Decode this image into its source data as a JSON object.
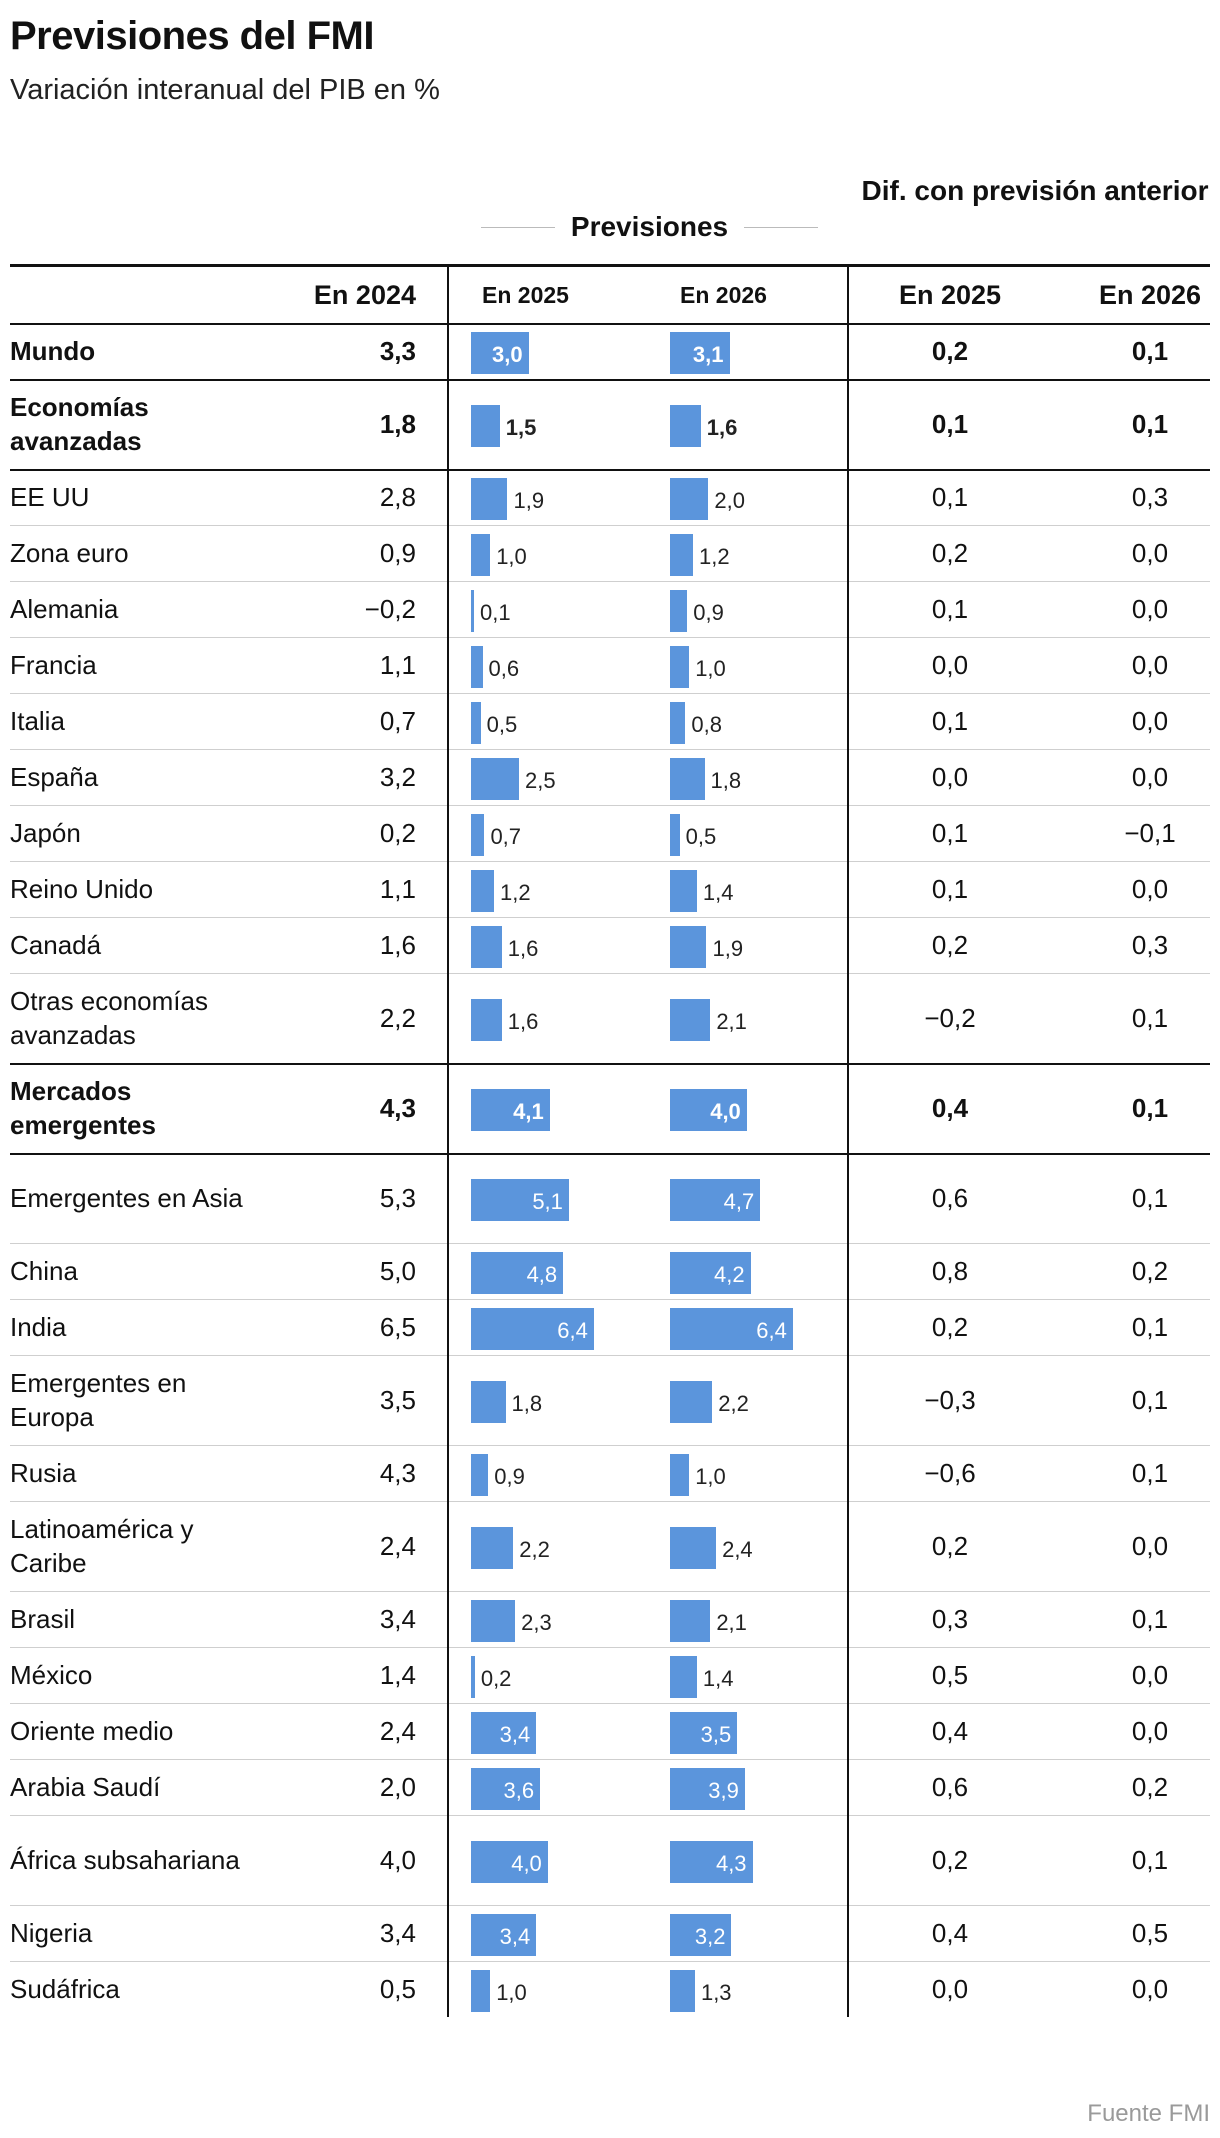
{
  "title": "Previsiones del FMI",
  "subtitle": "Variación interanual del PIB en %",
  "source": "Fuente FMI",
  "colors": {
    "bar": "#5b95dc",
    "text": "#111111",
    "source": "#9a9a9a"
  },
  "groups": {
    "previsiones": "Previsiones",
    "dif": "Dif. con previsión anterior"
  },
  "columns": {
    "y2024": "En 2024",
    "p2025": "En 2025",
    "p2026": "En 2026",
    "d2025": "En 2025",
    "d2026": "En 2026"
  },
  "chart_data": {
    "type": "table",
    "title": "Previsiones del FMI",
    "subtitle": "Variación interanual del PIB en %",
    "columns": [
      "En 2024",
      "Previsiones En 2025",
      "Previsiones En 2026",
      "Dif. con previsión anterior En 2025",
      "Dif. con previsión anterior En 2026"
    ],
    "bar_columns": [
      "Previsiones En 2025",
      "Previsiones En 2026"
    ],
    "rows": [
      {
        "name": "Mundo",
        "bold": true,
        "y2024": "3,3",
        "p2025": "3,0",
        "p2026": "3,1",
        "v2025": 3.0,
        "v2026": 3.1,
        "d2025": "0,2",
        "d2026": "0,1"
      },
      {
        "name": "Economías avanzadas",
        "bold": true,
        "y2024": "1,8",
        "p2025": "1,5",
        "p2026": "1,6",
        "v2025": 1.5,
        "v2026": 1.6,
        "d2025": "0,1",
        "d2026": "0,1"
      },
      {
        "name": "EE UU",
        "bold": false,
        "y2024": "2,8",
        "p2025": "1,9",
        "p2026": "2,0",
        "v2025": 1.9,
        "v2026": 2.0,
        "d2025": "0,1",
        "d2026": "0,3"
      },
      {
        "name": "Zona euro",
        "bold": false,
        "y2024": "0,9",
        "p2025": "1,0",
        "p2026": "1,2",
        "v2025": 1.0,
        "v2026": 1.2,
        "d2025": "0,2",
        "d2026": "0,0"
      },
      {
        "name": "Alemania",
        "bold": false,
        "y2024": "−0,2",
        "p2025": "0,1",
        "p2026": "0,9",
        "v2025": 0.1,
        "v2026": 0.9,
        "d2025": "0,1",
        "d2026": "0,0"
      },
      {
        "name": "Francia",
        "bold": false,
        "y2024": "1,1",
        "p2025": "0,6",
        "p2026": "1,0",
        "v2025": 0.6,
        "v2026": 1.0,
        "d2025": "0,0",
        "d2026": "0,0"
      },
      {
        "name": "Italia",
        "bold": false,
        "y2024": "0,7",
        "p2025": "0,5",
        "p2026": "0,8",
        "v2025": 0.5,
        "v2026": 0.8,
        "d2025": "0,1",
        "d2026": "0,0"
      },
      {
        "name": "España",
        "bold": false,
        "y2024": "3,2",
        "p2025": "2,5",
        "p2026": "1,8",
        "v2025": 2.5,
        "v2026": 1.8,
        "d2025": "0,0",
        "d2026": "0,0"
      },
      {
        "name": "Japón",
        "bold": false,
        "y2024": "0,2",
        "p2025": "0,7",
        "p2026": "0,5",
        "v2025": 0.7,
        "v2026": 0.5,
        "d2025": "0,1",
        "d2026": "−0,1"
      },
      {
        "name": "Reino Unido",
        "bold": false,
        "y2024": "1,1",
        "p2025": "1,2",
        "p2026": "1,4",
        "v2025": 1.2,
        "v2026": 1.4,
        "d2025": "0,1",
        "d2026": "0,0"
      },
      {
        "name": "Canadá",
        "bold": false,
        "y2024": "1,6",
        "p2025": "1,6",
        "p2026": "1,9",
        "v2025": 1.6,
        "v2026": 1.9,
        "d2025": "0,2",
        "d2026": "0,3"
      },
      {
        "name": "Otras economías avanzadas",
        "bold": false,
        "y2024": "2,2",
        "p2025": "1,6",
        "p2026": "2,1",
        "v2025": 1.6,
        "v2026": 2.1,
        "d2025": "−0,2",
        "d2026": "0,1"
      },
      {
        "name": "Mercados emergentes",
        "bold": true,
        "y2024": "4,3",
        "p2025": "4,1",
        "p2026": "4,0",
        "v2025": 4.1,
        "v2026": 4.0,
        "d2025": "0,4",
        "d2026": "0,1"
      },
      {
        "name": "Emergentes en Asia",
        "bold": false,
        "y2024": "5,3",
        "p2025": "5,1",
        "p2026": "4,7",
        "v2025": 5.1,
        "v2026": 4.7,
        "d2025": "0,6",
        "d2026": "0,1"
      },
      {
        "name": "China",
        "bold": false,
        "y2024": "5,0",
        "p2025": "4,8",
        "p2026": "4,2",
        "v2025": 4.8,
        "v2026": 4.2,
        "d2025": "0,8",
        "d2026": "0,2"
      },
      {
        "name": "India",
        "bold": false,
        "y2024": "6,5",
        "p2025": "6,4",
        "p2026": "6,4",
        "v2025": 6.4,
        "v2026": 6.4,
        "d2025": "0,2",
        "d2026": "0,1"
      },
      {
        "name": "Emergentes en Europa",
        "bold": false,
        "y2024": "3,5",
        "p2025": "1,8",
        "p2026": "2,2",
        "v2025": 1.8,
        "v2026": 2.2,
        "d2025": "−0,3",
        "d2026": "0,1"
      },
      {
        "name": "Rusia",
        "bold": false,
        "y2024": "4,3",
        "p2025": "0,9",
        "p2026": "1,0",
        "v2025": 0.9,
        "v2026": 1.0,
        "d2025": "−0,6",
        "d2026": "0,1"
      },
      {
        "name": "Latinoamérica y Caribe",
        "bold": false,
        "y2024": "2,4",
        "p2025": "2,2",
        "p2026": "2,4",
        "v2025": 2.2,
        "v2026": 2.4,
        "d2025": "0,2",
        "d2026": "0,0"
      },
      {
        "name": "Brasil",
        "bold": false,
        "y2024": "3,4",
        "p2025": "2,3",
        "p2026": "2,1",
        "v2025": 2.3,
        "v2026": 2.1,
        "d2025": "0,3",
        "d2026": "0,1"
      },
      {
        "name": "México",
        "bold": false,
        "y2024": "1,4",
        "p2025": "0,2",
        "p2026": "1,4",
        "v2025": 0.2,
        "v2026": 1.4,
        "d2025": "0,5",
        "d2026": "0,0"
      },
      {
        "name": "Oriente medio",
        "bold": false,
        "y2024": "2,4",
        "p2025": "3,4",
        "p2026": "3,5",
        "v2025": 3.4,
        "v2026": 3.5,
        "d2025": "0,4",
        "d2026": "0,0"
      },
      {
        "name": "Arabia Saudí",
        "bold": false,
        "y2024": "2,0",
        "p2025": "3,6",
        "p2026": "3,9",
        "v2025": 3.6,
        "v2026": 3.9,
        "d2025": "0,6",
        "d2026": "0,2"
      },
      {
        "name": "África subsahariana",
        "bold": false,
        "y2024": "4,0",
        "p2025": "4,0",
        "p2026": "4,3",
        "v2025": 4.0,
        "v2026": 4.3,
        "d2025": "0,2",
        "d2026": "0,1"
      },
      {
        "name": "Nigeria",
        "bold": false,
        "y2024": "3,4",
        "p2025": "3,4",
        "p2026": "3,2",
        "v2025": 3.4,
        "v2026": 3.2,
        "d2025": "0,4",
        "d2026": "0,5"
      },
      {
        "name": "Sudáfrica",
        "bold": false,
        "y2024": "0,5",
        "p2025": "1,0",
        "p2026": "1,3",
        "v2025": 1.0,
        "v2026": 1.3,
        "d2025": "0,0",
        "d2026": "0,0"
      }
    ]
  }
}
